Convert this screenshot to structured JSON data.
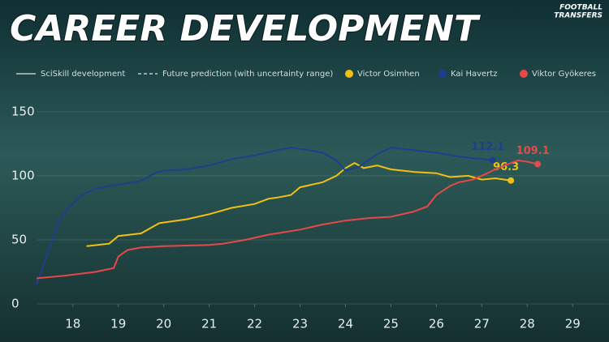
{
  "chart_data": {
    "type": "line",
    "title": "CAREER DEVELOPMENT",
    "logo": [
      "FOOTBALL",
      "TRANSFERS"
    ],
    "legend_extra": [
      "SciSkill development",
      "Future prediction (with uncertainty range)"
    ],
    "xlim": [
      17.2,
      29.8
    ],
    "ylim": [
      0,
      160
    ],
    "xticks": [
      18,
      19,
      20,
      21,
      22,
      23,
      24,
      25,
      26,
      27,
      28,
      29
    ],
    "yticks": [
      0,
      50,
      100,
      150
    ],
    "grid": true,
    "series": [
      {
        "name": "Victor Osimhen",
        "color": "#f2c00f",
        "x": [
          18.3,
          18.8,
          19.0,
          19.5,
          19.9,
          20.5,
          21.0,
          21.5,
          22.0,
          22.3,
          22.5,
          22.8,
          23.0,
          23.5,
          23.8,
          24.0,
          24.2,
          24.4,
          24.7,
          25.0,
          25.5,
          26.0,
          26.3,
          26.7,
          27.0,
          27.3,
          27.64
        ],
        "values": [
          45,
          47,
          53,
          55,
          63,
          66,
          70,
          75,
          78,
          82,
          83,
          85,
          91,
          95,
          100,
          106,
          110,
          106,
          108,
          105,
          103,
          102,
          99,
          100,
          97,
          98,
          96.3
        ]
      },
      {
        "name": "Kai Havertz",
        "color": "#1c3f8f",
        "x": [
          17.2,
          17.5,
          17.7,
          17.9,
          18.2,
          18.5,
          19.0,
          19.5,
          19.8,
          20.0,
          20.5,
          21.0,
          21.5,
          22.0,
          22.5,
          22.8,
          23.2,
          23.5,
          23.8,
          24.0,
          24.3,
          24.7,
          25.0,
          25.5,
          26.0,
          26.5,
          27.0,
          27.24
        ],
        "values": [
          15,
          45,
          65,
          75,
          85,
          90,
          93,
          96,
          102,
          104,
          105,
          108,
          113,
          116,
          120,
          122,
          120,
          118,
          112,
          104,
          107,
          117,
          122,
          120,
          118,
          115,
          113,
          112.1
        ]
      },
      {
        "name": "Viktor Gyökeres",
        "color": "#e84848",
        "x": [
          17.2,
          17.8,
          18.5,
          18.9,
          19.0,
          19.2,
          19.5,
          20.0,
          21.0,
          21.3,
          21.8,
          22.3,
          23.0,
          23.5,
          24.0,
          24.5,
          25.0,
          25.5,
          25.8,
          26.0,
          26.3,
          26.5,
          26.8,
          27.0,
          27.3,
          27.5,
          27.8,
          28.0,
          28.23
        ],
        "values": [
          20,
          22,
          25,
          28,
          37,
          42,
          44,
          45,
          46,
          47,
          50,
          54,
          58,
          62,
          65,
          67,
          68,
          72,
          76,
          85,
          92,
          95,
          97,
          100,
          105,
          108,
          112,
          111,
          109.1
        ]
      }
    ]
  }
}
